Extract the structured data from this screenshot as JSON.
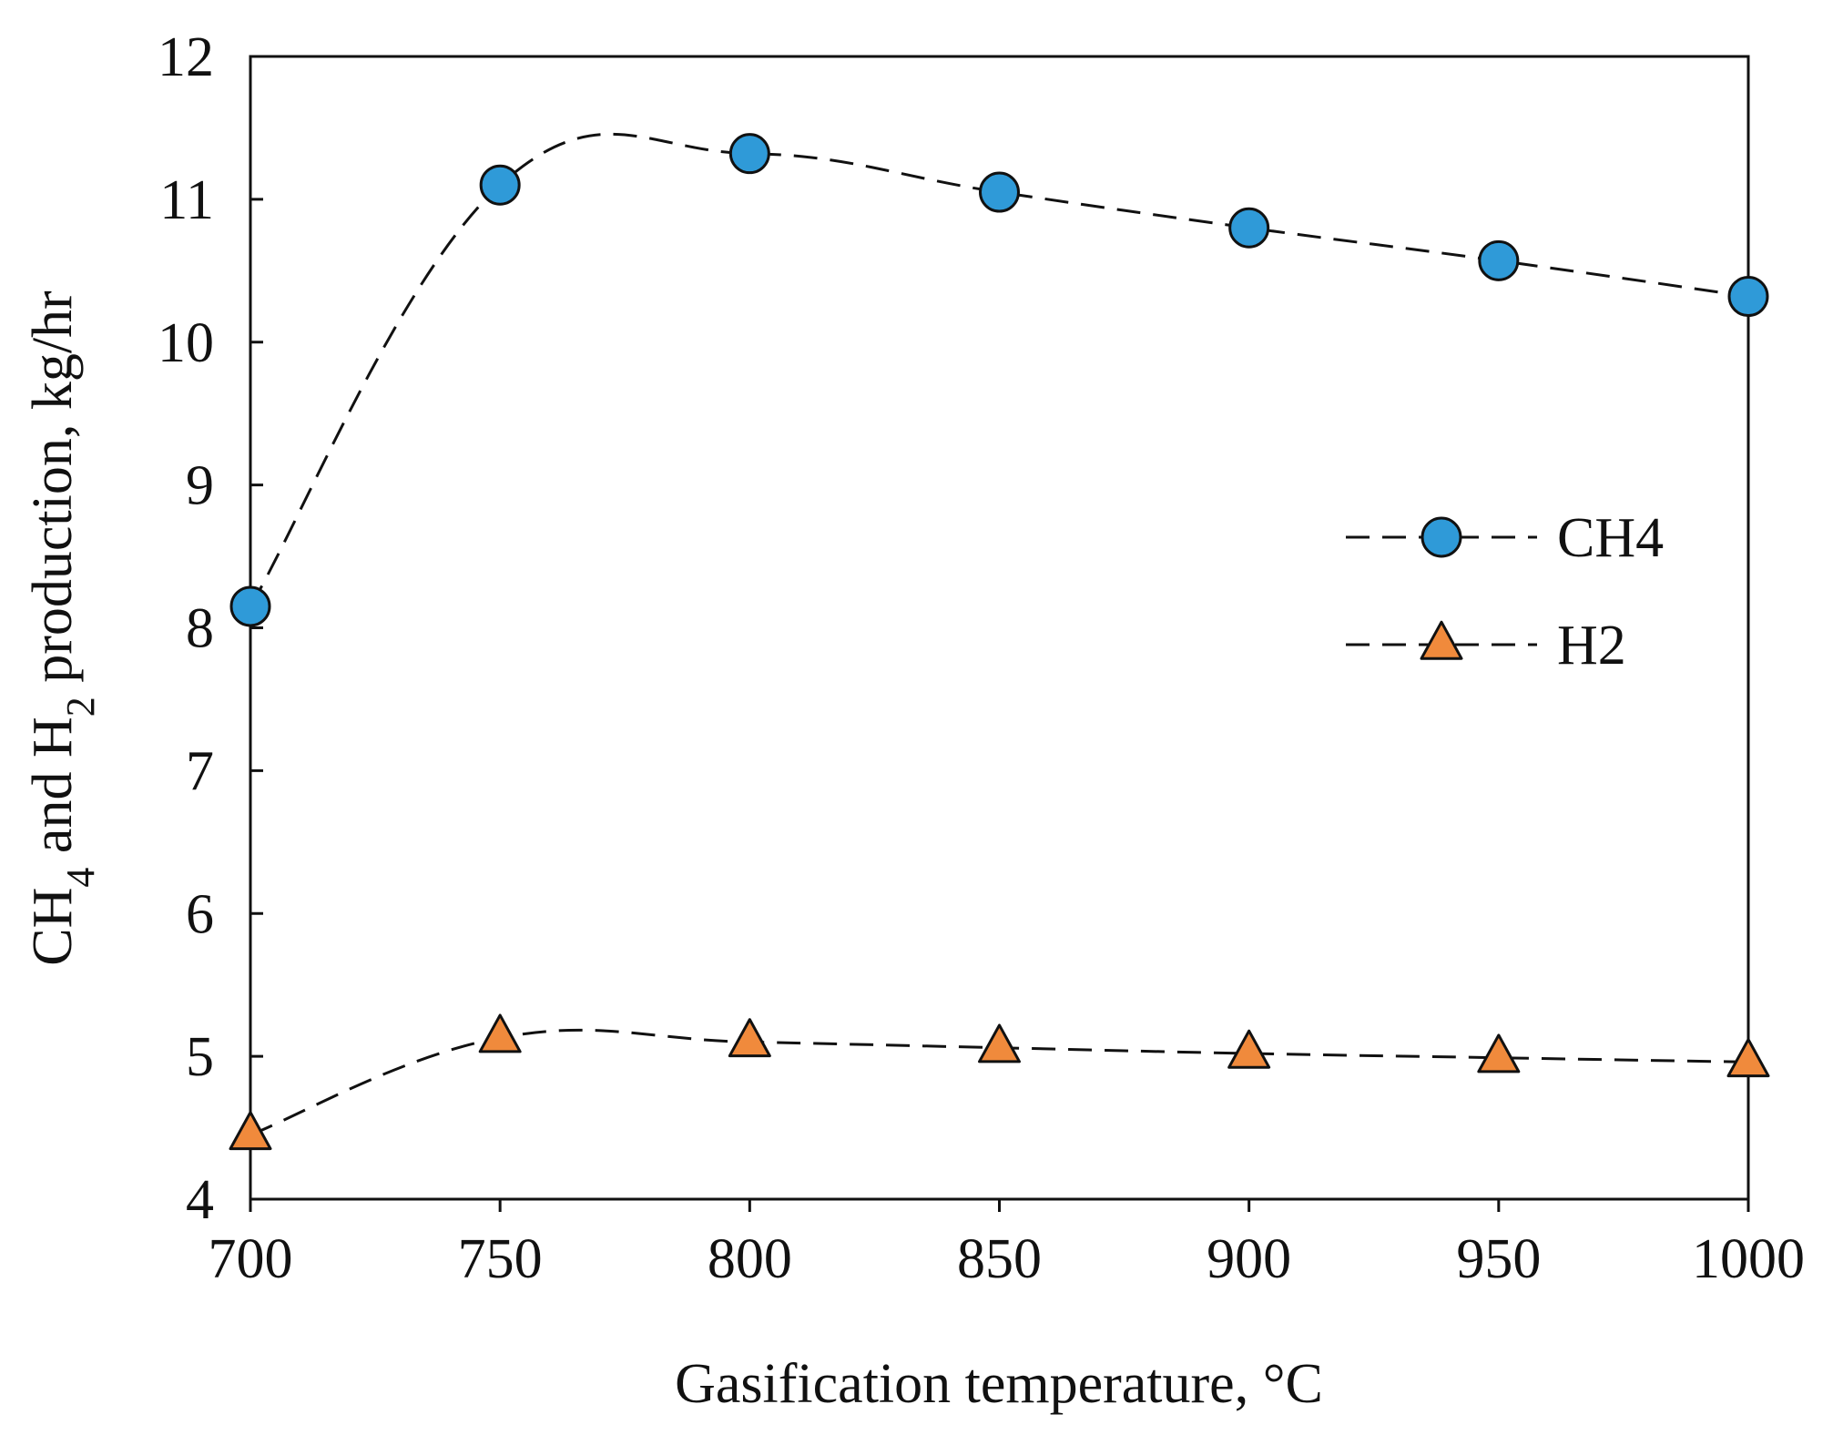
{
  "chart_data": {
    "type": "line",
    "title": "",
    "xlabel": "Gasification temperature, °C",
    "ylabel": {
      "p1": "CH",
      "s1": "4",
      "p2": " and H",
      "s2": "2",
      "p3": " production, kg/hr"
    },
    "x": [
      700,
      750,
      800,
      850,
      900,
      950,
      1000
    ],
    "xlim": [
      700,
      1000
    ],
    "ylim": [
      4,
      12
    ],
    "xticks": [
      "700",
      "750",
      "800",
      "850",
      "900",
      "950",
      "1000"
    ],
    "yticks": [
      "4",
      "5",
      "6",
      "7",
      "8",
      "9",
      "10",
      "11",
      "12"
    ],
    "grid": false,
    "legend_position": "center-right",
    "series": [
      {
        "name": "CH4",
        "values": [
          8.15,
          11.1,
          11.32,
          11.05,
          10.8,
          10.57,
          10.32
        ],
        "marker": "circle",
        "color": "#2f9ad8",
        "line_style": "dashed"
      },
      {
        "name": "H2",
        "values": [
          4.45,
          5.13,
          5.1,
          5.06,
          5.02,
          4.99,
          4.96
        ],
        "marker": "triangle",
        "color": "#f08a3c",
        "line_style": "dashed"
      }
    ]
  }
}
